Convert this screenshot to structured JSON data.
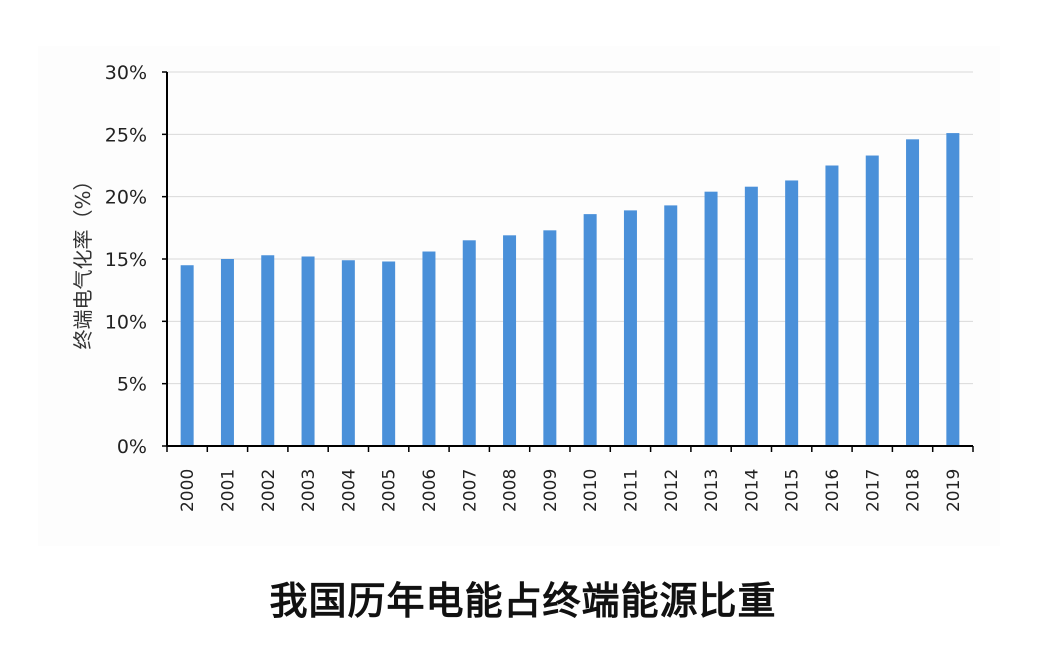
{
  "chart_data": {
    "type": "bar",
    "title": "我国历年电能占终端能源比重",
    "xlabel": "",
    "ylabel": "终端电气化率（%）",
    "categories": [
      "2000",
      "2001",
      "2002",
      "2003",
      "2004",
      "2005",
      "2006",
      "2007",
      "2008",
      "2009",
      "2010",
      "2011",
      "2012",
      "2013",
      "2014",
      "2015",
      "2016",
      "2017",
      "2018",
      "2019"
    ],
    "values": [
      14.5,
      15.0,
      15.3,
      15.2,
      14.9,
      14.8,
      15.6,
      16.5,
      16.9,
      17.3,
      18.6,
      18.9,
      19.3,
      20.4,
      20.8,
      21.3,
      22.5,
      23.3,
      24.6,
      25.1
    ],
    "ylim": [
      0,
      30
    ],
    "yticks": [
      0,
      5,
      10,
      15,
      20,
      25,
      30
    ],
    "ytick_labels": [
      "0%",
      "5%",
      "10%",
      "15%",
      "20%",
      "25%",
      "30%"
    ],
    "grid": true,
    "legend": "none",
    "bar_color": "#4a90d9"
  }
}
